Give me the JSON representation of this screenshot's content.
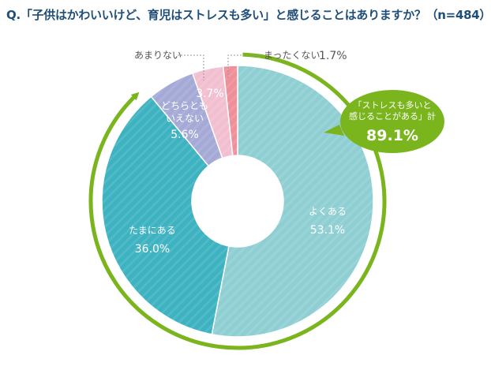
{
  "title": "Q.「子供はかわいいけど、育児はストレスも多い」と感じることはありますか？（n=484）",
  "chart_data": {
    "type": "pie",
    "series": [
      {
        "name": "よくある",
        "value_label": "53.1%",
        "value": 53.1,
        "color": "#8fcfd3"
      },
      {
        "name": "たまにある",
        "value_label": "36.0%",
        "value": 36.0,
        "color": "#3db2c0"
      },
      {
        "name": "どちらとも いえない",
        "name_lines": [
          "どちらとも",
          "いえない"
        ],
        "value_label": "5.6%",
        "value": 5.6,
        "color": "#a5a9d6"
      },
      {
        "name": "あまりない",
        "value_label": "3.7%",
        "value": 3.7,
        "color": "#f2bfd0"
      },
      {
        "name": "まったくない",
        "value_label": "1.7%",
        "value": 1.7,
        "color": "#ee8f99"
      }
    ],
    "callout": {
      "lines": [
        "「ストレスも多いと",
        "感じることがある」計"
      ],
      "value": "89.1%",
      "color": "#7ab51d"
    }
  }
}
